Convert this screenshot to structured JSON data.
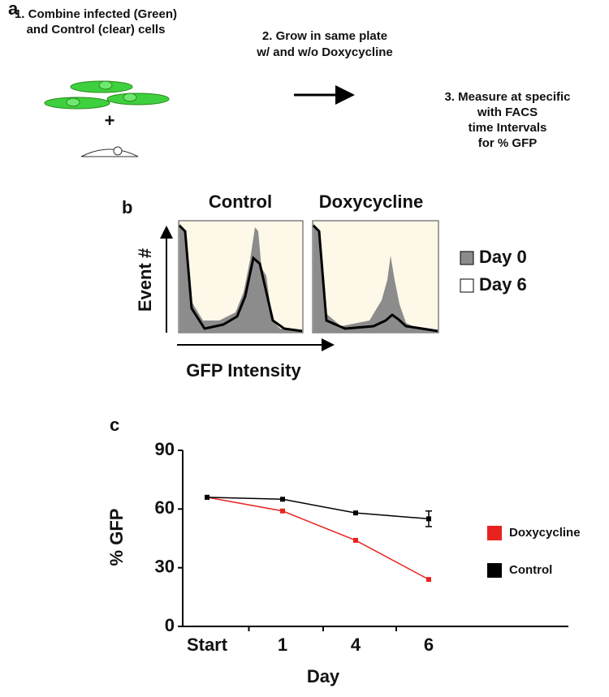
{
  "panel_a": {
    "label": "a",
    "step1": [
      "1. Combine infected (Green)",
      "and Control (clear) cells"
    ],
    "plus": "+",
    "step2": [
      "2. Grow in same plate",
      "w/ and w/o Doxycycline"
    ],
    "step3": [
      "3. Measure at specific",
      "with FACS",
      "time Intervals",
      "for % GFP"
    ]
  },
  "panel_b": {
    "label": "b",
    "columns": [
      "Control",
      "Doxycycline"
    ],
    "ylabel": "Event #",
    "xlabel": "GFP Intensity",
    "legend": [
      {
        "name": "Day 0",
        "color": "#8c8c8c"
      },
      {
        "name": "Day 6",
        "color": "#ffffff"
      }
    ]
  },
  "chart_data": {
    "type": "line",
    "label": "c",
    "ylabel": "% GFP",
    "xlabel": "Day",
    "categories": [
      "Start",
      "1",
      "4",
      "6"
    ],
    "series": [
      {
        "name": "Doxycycline",
        "color": "#e8231f",
        "values": [
          66,
          59,
          44,
          24
        ]
      },
      {
        "name": "Control",
        "color": "#000000",
        "values": [
          66,
          65,
          58,
          55
        ],
        "errors": [
          null,
          null,
          null,
          4
        ]
      }
    ],
    "ylim": [
      0,
      90
    ],
    "yticks": [
      0,
      30,
      60,
      90
    ]
  }
}
